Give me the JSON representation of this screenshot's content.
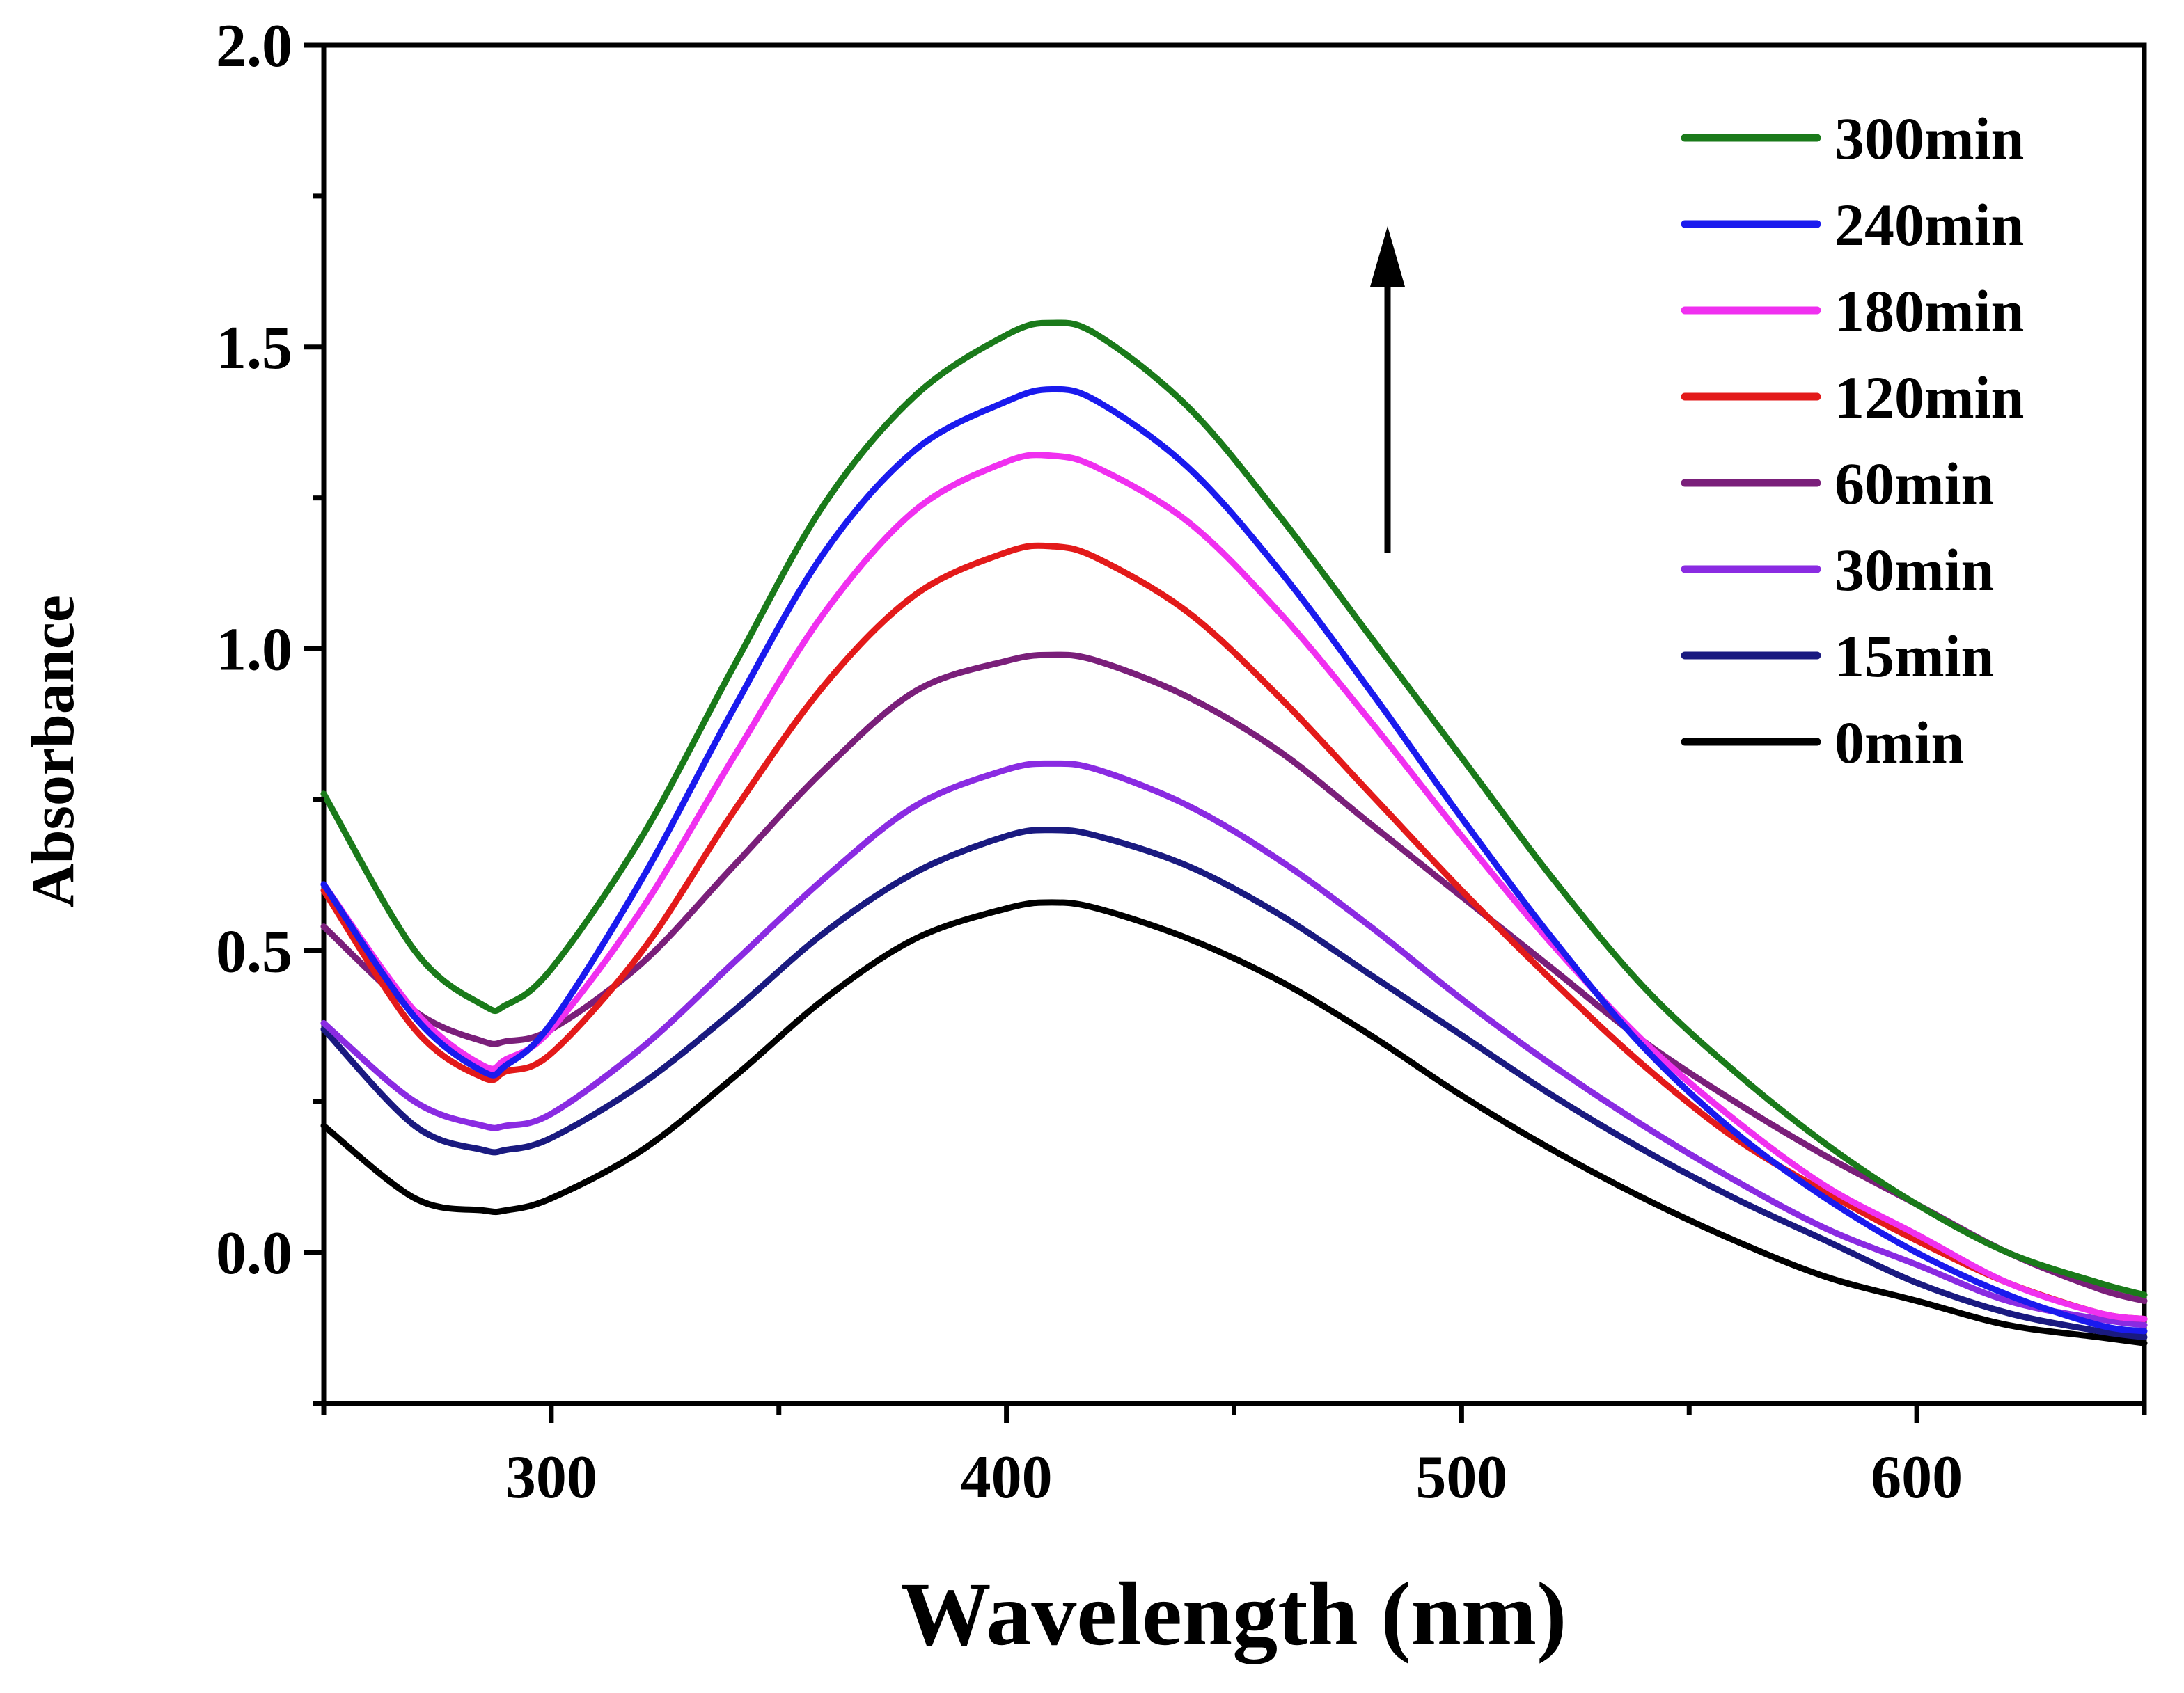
{
  "chart_data": {
    "type": "line",
    "title": "",
    "xlabel": "Wavelength (nm)",
    "ylabel": "Absorbance",
    "xlim": [
      250,
      650
    ],
    "ylim": [
      -0.25,
      2.0
    ],
    "xticks": [
      300,
      400,
      500,
      600
    ],
    "xtick_labels": [
      "300",
      "400",
      "500",
      "600"
    ],
    "yticks": [
      0.0,
      0.5,
      1.0,
      1.5,
      2.0
    ],
    "ytick_labels": [
      "0.0",
      "0.5",
      "1.0",
      "1.5",
      "2.0"
    ],
    "grid": false,
    "legend_position": "top-right",
    "annotation": "upward arrow indicating absorbance increases with time",
    "x": [
      250,
      270,
      285,
      290,
      300,
      320,
      340,
      360,
      380,
      400,
      410,
      420,
      440,
      460,
      480,
      500,
      520,
      540,
      560,
      580,
      600,
      620,
      640,
      650
    ],
    "series": [
      {
        "name": "300min",
        "color": "#1a7a1a",
        "values": [
          0.76,
          0.5,
          0.41,
          0.41,
          0.47,
          0.69,
          0.97,
          1.24,
          1.42,
          1.52,
          1.54,
          1.52,
          1.4,
          1.22,
          1.02,
          0.82,
          0.62,
          0.44,
          0.3,
          0.18,
          0.08,
          0.0,
          -0.05,
          -0.07
        ]
      },
      {
        "name": "240min",
        "color": "#1a1aee",
        "values": [
          0.61,
          0.39,
          0.3,
          0.31,
          0.38,
          0.62,
          0.9,
          1.16,
          1.33,
          1.41,
          1.43,
          1.41,
          1.3,
          1.13,
          0.93,
          0.72,
          0.52,
          0.34,
          0.2,
          0.09,
          0.0,
          -0.07,
          -0.12,
          -0.13
        ]
      },
      {
        "name": "180min",
        "color": "#f030f0",
        "values": [
          0.61,
          0.4,
          0.31,
          0.32,
          0.37,
          0.57,
          0.82,
          1.06,
          1.23,
          1.31,
          1.32,
          1.3,
          1.21,
          1.06,
          0.88,
          0.69,
          0.51,
          0.35,
          0.22,
          0.11,
          0.03,
          -0.05,
          -0.1,
          -0.11
        ]
      },
      {
        "name": "120min",
        "color": "#e31a1a",
        "values": [
          0.6,
          0.37,
          0.29,
          0.3,
          0.33,
          0.5,
          0.73,
          0.94,
          1.09,
          1.16,
          1.17,
          1.15,
          1.06,
          0.92,
          0.76,
          0.6,
          0.45,
          0.31,
          0.19,
          0.1,
          0.02,
          -0.05,
          -0.1,
          -0.11
        ]
      },
      {
        "name": "60min",
        "color": "#7a1f7a",
        "values": [
          0.54,
          0.4,
          0.35,
          0.35,
          0.37,
          0.48,
          0.64,
          0.8,
          0.93,
          0.98,
          0.99,
          0.98,
          0.92,
          0.83,
          0.71,
          0.59,
          0.47,
          0.35,
          0.25,
          0.16,
          0.08,
          0.0,
          -0.06,
          -0.08
        ]
      },
      {
        "name": "30min",
        "color": "#8a2be2",
        "values": [
          0.38,
          0.25,
          0.21,
          0.21,
          0.23,
          0.34,
          0.48,
          0.62,
          0.74,
          0.8,
          0.81,
          0.8,
          0.74,
          0.65,
          0.54,
          0.42,
          0.31,
          0.21,
          0.12,
          0.04,
          -0.02,
          -0.08,
          -0.11,
          -0.12
        ]
      },
      {
        "name": "15min",
        "color": "#1a1a80",
        "values": [
          0.37,
          0.21,
          0.17,
          0.17,
          0.19,
          0.28,
          0.4,
          0.53,
          0.63,
          0.69,
          0.7,
          0.69,
          0.64,
          0.56,
          0.46,
          0.36,
          0.26,
          0.17,
          0.09,
          0.02,
          -0.05,
          -0.1,
          -0.13,
          -0.14
        ]
      },
      {
        "name": "0min",
        "color": "#000000",
        "values": [
          0.21,
          0.09,
          0.07,
          0.07,
          0.09,
          0.17,
          0.29,
          0.42,
          0.52,
          0.57,
          0.58,
          0.57,
          0.52,
          0.45,
          0.36,
          0.26,
          0.17,
          0.09,
          0.02,
          -0.04,
          -0.08,
          -0.12,
          -0.14,
          -0.15
        ]
      }
    ]
  }
}
